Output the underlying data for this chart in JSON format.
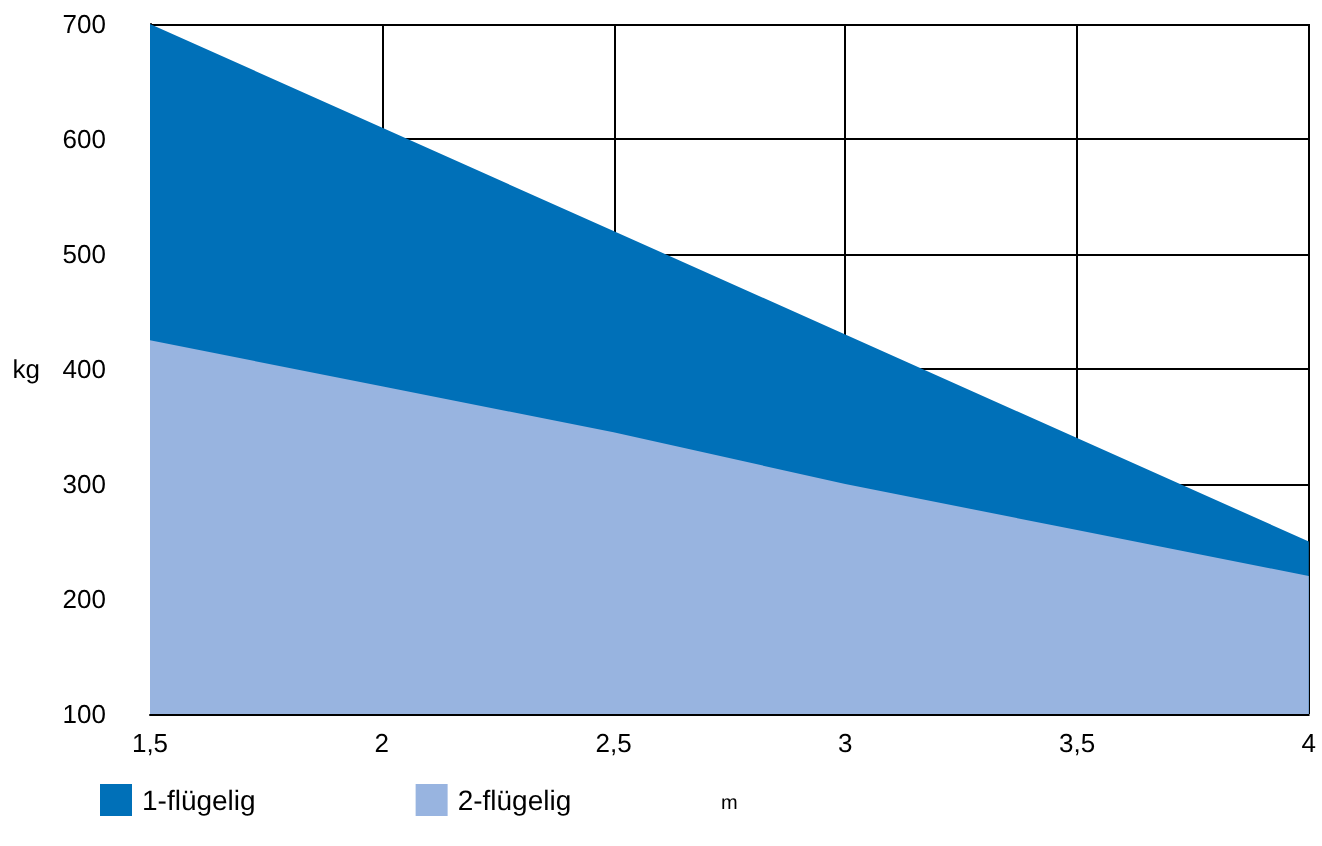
{
  "chart_data": {
    "type": "area",
    "xlabel": "m",
    "ylabel": "kg",
    "x": [
      1.5,
      2,
      2.5,
      3,
      3.5,
      4
    ],
    "series": [
      {
        "name": "1-flügelig",
        "color": "#0070b8",
        "values": [
          700,
          610,
          520,
          430,
          340,
          250
        ]
      },
      {
        "name": "2-flügelig",
        "color": "#98b4e0",
        "values": [
          425,
          385,
          345,
          300,
          260,
          220
        ]
      }
    ],
    "xlim": [
      1.5,
      4
    ],
    "xticks": [
      {
        "value": 1.5,
        "label": "1,5"
      },
      2,
      {
        "value": 2.5,
        "label": "2,5"
      },
      3,
      {
        "value": 3.5,
        "label": "3,5"
      },
      4
    ],
    "ylim": [
      100,
      700
    ],
    "yticks": [
      100,
      200,
      300,
      400,
      500,
      600,
      700
    ],
    "grid": true,
    "legend": "bottom left"
  }
}
